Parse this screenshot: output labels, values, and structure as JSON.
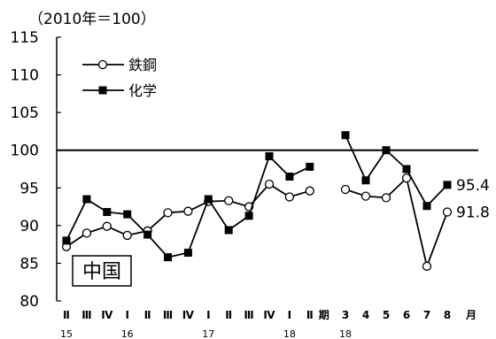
{
  "chart_data": {
    "type": "line",
    "unit_note": "（2010年＝100）",
    "ylim": [
      80,
      115
    ],
    "y_ticks": [
      80,
      85,
      90,
      95,
      100,
      105,
      110,
      115
    ],
    "reference_line": 100,
    "quarter_labels": [
      "Ⅱ",
      "Ⅲ",
      "Ⅳ",
      "Ⅰ",
      "Ⅱ",
      "Ⅲ",
      "Ⅳ",
      "Ⅰ",
      "Ⅱ",
      "Ⅲ",
      "Ⅳ",
      "Ⅰ",
      "Ⅱ"
    ],
    "quarter_year_labels": [
      {
        "index": 0,
        "label": "15"
      },
      {
        "index": 3,
        "label": "16"
      },
      {
        "index": 7,
        "label": "17"
      },
      {
        "index": 11,
        "label": "18"
      }
    ],
    "quarter_suffix": "期",
    "month_labels": [
      "3",
      "4",
      "5",
      "6",
      "7",
      "8"
    ],
    "month_year_labels": [
      {
        "index": 0,
        "label": "18"
      }
    ],
    "month_suffix": "月",
    "series": [
      {
        "name": "鉄鋼",
        "marker": "open-circle",
        "quarterly": [
          87.2,
          89.0,
          89.9,
          88.7,
          89.3,
          91.7,
          91.9,
          93.2,
          93.3,
          92.5,
          95.5,
          93.8,
          94.6
        ],
        "monthly": [
          94.8,
          93.9,
          93.7,
          96.3,
          84.6,
          91.8
        ],
        "end_label": "91.8"
      },
      {
        "name": "化学",
        "marker": "filled-square",
        "quarterly": [
          88.0,
          93.5,
          91.8,
          91.5,
          88.8,
          85.8,
          86.4,
          93.5,
          89.4,
          91.3,
          99.2,
          96.5,
          97.8
        ],
        "monthly": [
          102.0,
          96.0,
          100.0,
          97.5,
          92.6,
          95.4
        ],
        "end_label": "95.4"
      }
    ],
    "region_label": "中国"
  }
}
